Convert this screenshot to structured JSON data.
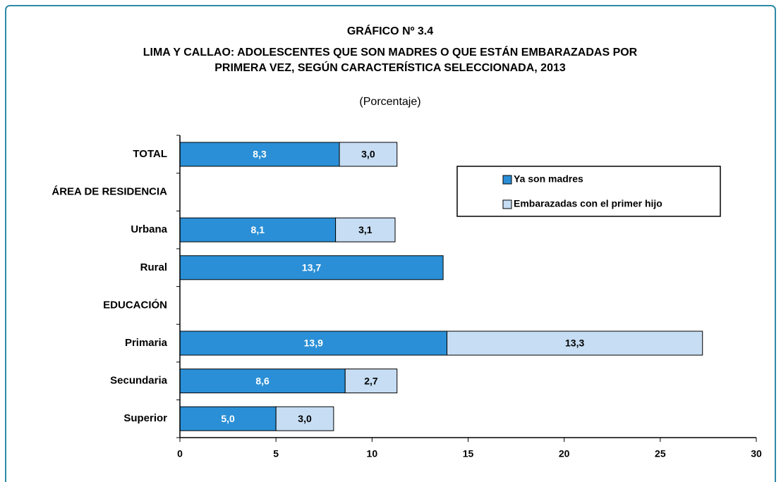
{
  "chart_data": {
    "type": "stacked_barh",
    "title_lines": [
      "GRÁFICO Nº 3.4",
      "LIMA Y CALLAO: ADOLESCENTES QUE SON MADRES O QUE ESTÁN EMBARAZADAS POR",
      "PRIMERA VEZ, SEGÚN CARACTERÍSTICA SELECCIONADA, 2013"
    ],
    "subtitle": "(Porcentaje)",
    "categories": [
      "TOTAL",
      "ÁREA DE RESIDENCIA",
      "Urbana",
      "Rural",
      "EDUCACIÓN",
      "Primaria",
      "Secundaria",
      "Superior"
    ],
    "series": [
      {
        "name": "Ya son madres",
        "color": "#2a8fd6",
        "label_color": "#ffffff",
        "values": [
          8.3,
          null,
          8.1,
          13.7,
          null,
          13.9,
          8.6,
          5.0
        ],
        "value_labels": [
          "8,3",
          null,
          "8,1",
          "13,7",
          null,
          "13,9",
          "8,6",
          "5,0"
        ]
      },
      {
        "name": "Embarazadas con el primer hijo",
        "color": "#c6ddf3",
        "label_color": "#000000",
        "values": [
          3.0,
          null,
          3.1,
          null,
          null,
          13.3,
          2.7,
          3.0
        ],
        "value_labels": [
          "3,0",
          null,
          "3,1",
          null,
          null,
          "13,3",
          "2,7",
          "3,0"
        ]
      }
    ],
    "xlim": [
      0,
      30
    ],
    "xticks": [
      0,
      5,
      10,
      15,
      20,
      25,
      30
    ],
    "legend": "upper right"
  }
}
